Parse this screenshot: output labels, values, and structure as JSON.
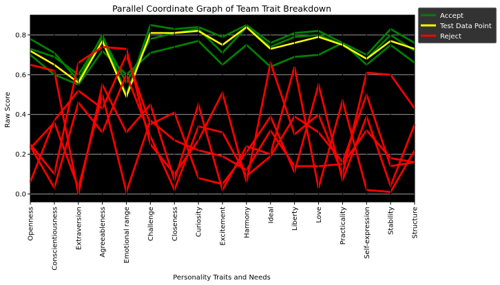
{
  "chart_data": {
    "type": "line",
    "title": "Parallel Coordinate Graph of Team Trait Breakdown",
    "xlabel": "Personality Traits and Needs",
    "ylabel": "Raw Score",
    "ylim": [
      -0.04,
      0.9
    ],
    "yticks": [
      "0.0",
      "0.2",
      "0.4",
      "0.6",
      "0.8"
    ],
    "ytick_values": [
      0.0,
      0.2,
      0.4,
      0.6,
      0.8
    ],
    "categories": [
      "Openness",
      "Conscientiousness",
      "Extraversion",
      "Agreeableness",
      "Emotional range",
      "Challenge",
      "Closeness",
      "Curiosity",
      "Excitement",
      "Harmony",
      "Ideal",
      "Liberty",
      "Love",
      "Practicality",
      "Self-expression",
      "Stability",
      "Structure"
    ],
    "grid": true,
    "background": "#000000",
    "legend_position": "outside upper-right",
    "legend": [
      {
        "label": "Accept",
        "color": "#008000"
      },
      {
        "label": "Test Data Point",
        "color": "#ffff00"
      },
      {
        "label": "Reject",
        "color": "#ff0000"
      }
    ],
    "series": [
      {
        "group": "Accept",
        "color": "#008000",
        "values": [
          0.78,
          0.71,
          0.57,
          0.8,
          0.5,
          0.85,
          0.83,
          0.84,
          0.79,
          0.85,
          0.76,
          0.81,
          0.82,
          0.76,
          0.7,
          0.83,
          0.76
        ]
      },
      {
        "group": "Accept",
        "color": "#008000",
        "values": [
          0.73,
          0.69,
          0.6,
          0.79,
          0.56,
          0.78,
          0.81,
          0.83,
          0.71,
          0.84,
          0.74,
          0.79,
          0.8,
          0.75,
          0.68,
          0.8,
          0.72
        ]
      },
      {
        "group": "Accept",
        "color": "#008000",
        "values": [
          0.7,
          0.6,
          0.55,
          0.72,
          0.6,
          0.71,
          0.74,
          0.77,
          0.65,
          0.75,
          0.64,
          0.69,
          0.7,
          0.76,
          0.65,
          0.75,
          0.66
        ]
      },
      {
        "group": "Test Data Point",
        "color": "#ffff00",
        "values": [
          0.72,
          0.65,
          0.56,
          0.77,
          0.49,
          0.81,
          0.81,
          0.82,
          0.75,
          0.84,
          0.73,
          0.76,
          0.79,
          0.75,
          0.68,
          0.77,
          0.73
        ]
      },
      {
        "group": "Reject",
        "color": "#ff0000",
        "values": [
          0.65,
          0.62,
          0.0,
          0.55,
          0.31,
          0.45,
          0.07,
          0.45,
          0.02,
          0.24,
          0.2,
          0.64,
          0.03,
          0.47,
          0.02,
          0.01,
          0.22
        ]
      },
      {
        "group": "Reject",
        "color": "#ff0000",
        "values": [
          0.25,
          0.1,
          0.66,
          0.74,
          0.73,
          0.25,
          0.1,
          0.27,
          0.51,
          0.06,
          0.66,
          0.3,
          0.4,
          0.1,
          0.61,
          0.6,
          0.43
        ]
      },
      {
        "group": "Reject",
        "color": "#ff0000",
        "values": [
          0.06,
          0.37,
          0.52,
          0.43,
          0.7,
          0.35,
          0.41,
          0.08,
          0.05,
          0.21,
          0.39,
          0.11,
          0.55,
          0.07,
          0.39,
          0.04,
          0.35
        ]
      },
      {
        "group": "Reject",
        "color": "#ff0000",
        "values": [
          0.24,
          0.03,
          0.46,
          0.31,
          0.6,
          0.29,
          0.02,
          0.34,
          0.31,
          0.09,
          0.19,
          0.39,
          0.31,
          0.16,
          0.5,
          0.14,
          0.16
        ]
      },
      {
        "group": "Reject",
        "color": "#ff0000",
        "values": [
          0.23,
          0.36,
          0.03,
          0.5,
          0.01,
          0.37,
          0.27,
          0.22,
          0.19,
          0.12,
          0.32,
          0.14,
          0.14,
          0.15,
          0.32,
          0.18,
          0.16
        ]
      }
    ]
  }
}
